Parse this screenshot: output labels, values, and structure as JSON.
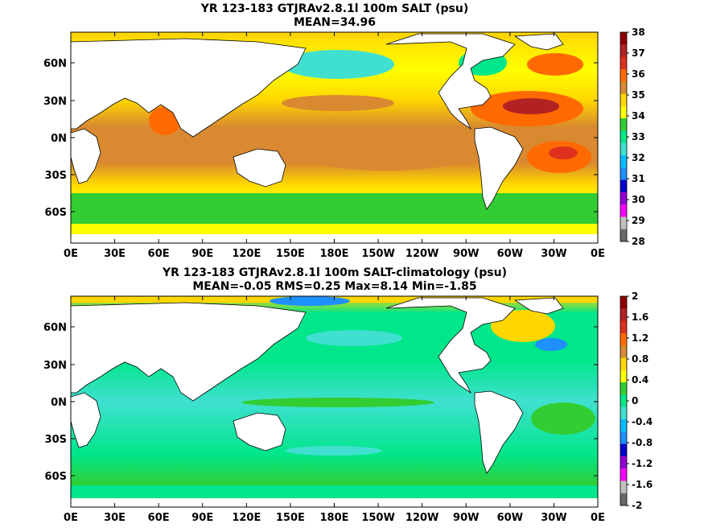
{
  "panels": [
    {
      "title_line1": "YR 123-183 GTJRAv2.8.1l 100m SALT (psu)",
      "title_line2": "MEAN=34.96",
      "colorbar": {
        "labels": [
          "38",
          "37",
          "36",
          "35",
          "34",
          "33",
          "32",
          "31",
          "30",
          "29",
          "28"
        ],
        "colors": [
          "#8b0000",
          "#b22222",
          "#e0301e",
          "#ff6a00",
          "#d9892f",
          "#ffd700",
          "#ffff00",
          "#32cd32",
          "#00e68a",
          "#40e0d0",
          "#00bfff",
          "#1e90ff",
          "#0000cd",
          "#9400d3",
          "#ff00ff",
          "#c0c0c0",
          "#696969"
        ]
      }
    },
    {
      "title_line1": "YR 123-183 GTJRAv2.8.1l 100m SALT-climatology (psu)",
      "title_line2": "MEAN=-0.05   RMS=0.25   Max=8.14   Min=-1.85",
      "colorbar": {
        "labels": [
          "2",
          "1.6",
          "1.2",
          "0.8",
          "0.4",
          "0",
          "-0.4",
          "-0.8",
          "-1.2",
          "-1.6",
          "-2"
        ],
        "colors": [
          "#8b0000",
          "#b22222",
          "#e0301e",
          "#ff6a00",
          "#d9892f",
          "#ffd700",
          "#ffff00",
          "#32cd32",
          "#00e68a",
          "#40e0d0",
          "#00bfff",
          "#1e90ff",
          "#0000cd",
          "#9400d3",
          "#ff00ff",
          "#c0c0c0",
          "#696969"
        ]
      }
    }
  ],
  "chart_data": [
    {
      "type": "heatmap",
      "title": "YR 123-183 GTJRAv2.8.1l 100m SALT (psu)",
      "subtitle": "MEAN=34.96",
      "x_ticks": [
        "0E",
        "30E",
        "60E",
        "90E",
        "120E",
        "150E",
        "180E",
        "150W",
        "120W",
        "90W",
        "60W",
        "30W",
        "0E"
      ],
      "y_ticks": [
        "60N",
        "30N",
        "0N",
        "30S",
        "60S"
      ],
      "colorbar_range": [
        28,
        38
      ],
      "mean": 34.96
    },
    {
      "type": "heatmap",
      "title": "YR 123-183 GTJRAv2.8.1l 100m SALT-climatology (psu)",
      "subtitle": "MEAN=-0.05   RMS=0.25   Max=8.14   Min=-1.85",
      "x_ticks": [
        "0E",
        "30E",
        "60E",
        "90E",
        "120E",
        "150E",
        "180E",
        "150W",
        "120W",
        "90W",
        "60W",
        "30W",
        "0E"
      ],
      "y_ticks": [
        "60N",
        "30N",
        "0N",
        "30S",
        "60S"
      ],
      "colorbar_range": [
        -2,
        2
      ],
      "mean": -0.05,
      "rms": 0.25,
      "max": 8.14,
      "min": -1.85
    }
  ]
}
